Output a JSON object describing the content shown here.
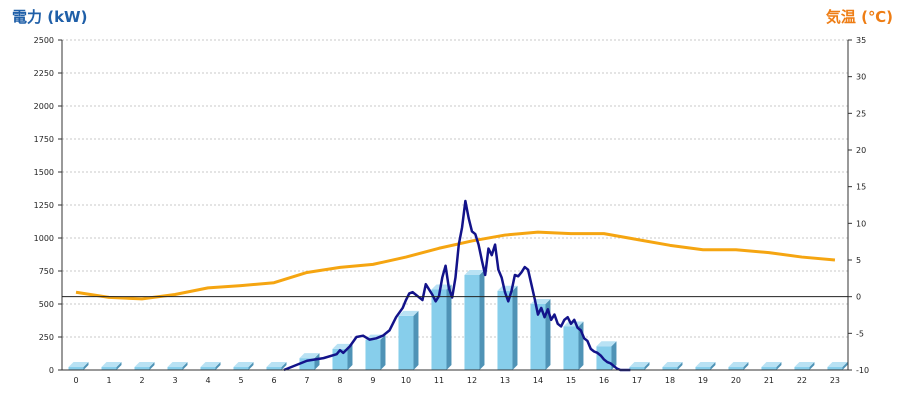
{
  "chart_data": {
    "type": "bar",
    "title": "",
    "ylabel": "電力 (kW)",
    "y2label": "気温 (℃)",
    "categories": [
      "0",
      "1",
      "2",
      "3",
      "4",
      "5",
      "6",
      "7",
      "8",
      "9",
      "10",
      "11",
      "12",
      "13",
      "14",
      "15",
      "16",
      "17",
      "18",
      "19",
      "20",
      "21",
      "22",
      "23"
    ],
    "ylim": [
      0,
      2500
    ],
    "yticks": [
      0,
      250,
      500,
      750,
      1000,
      1250,
      1500,
      1750,
      2000,
      2250,
      2500
    ],
    "y2lim": [
      -10,
      35
    ],
    "y2ticks": [
      -10,
      -5,
      0,
      5,
      10,
      15,
      20,
      25,
      30,
      35
    ],
    "grid": true,
    "reference_line_y2": 0,
    "colors": {
      "bar_front": "#87ceeb",
      "bar_side": "#4f93b6",
      "bar_top": "#b9e2f4",
      "power_line": "#13138a",
      "temp_line": "#f5a511",
      "left_axis_label": "#1f5fa8",
      "right_axis_label": "#ee7d14"
    },
    "series": [
      {
        "kind": "bar",
        "axis": "left",
        "values": [
          0,
          0,
          0,
          0,
          0,
          0,
          0,
          90,
          160,
          230,
          410,
          610,
          720,
          600,
          500,
          330,
          180,
          0,
          0,
          0,
          0,
          0,
          0,
          0
        ]
      },
      {
        "kind": "line",
        "axis": "left",
        "x": [
          6.3,
          7,
          7.5,
          7.9,
          8,
          8.1,
          8.3,
          8.5,
          8.7,
          8.9,
          9.1,
          9.3,
          9.5,
          9.7,
          9.9,
          10,
          10.1,
          10.2,
          10.35,
          10.5,
          10.6,
          10.8,
          10.9,
          11,
          11.1,
          11.2,
          11.3,
          11.4,
          11.5,
          11.6,
          11.7,
          11.8,
          11.9,
          12,
          12.1,
          12.2,
          12.3,
          12.4,
          12.5,
          12.6,
          12.7,
          12.8,
          12.9,
          13,
          13.1,
          13.2,
          13.3,
          13.4,
          13.5,
          13.6,
          13.7,
          13.8,
          13.9,
          14,
          14.1,
          14.2,
          14.3,
          14.4,
          14.5,
          14.6,
          14.7,
          14.8,
          14.9,
          15,
          15.1,
          15.2,
          15.3,
          15.4,
          15.5,
          15.6,
          15.7,
          15.8,
          15.9,
          16,
          16.1,
          16.2,
          16.3,
          16.4,
          16.5,
          16.6,
          16.7,
          16.8
        ],
        "values": [
          0,
          70,
          90,
          120,
          150,
          130,
          180,
          250,
          260,
          230,
          240,
          260,
          300,
          400,
          470,
          530,
          580,
          590,
          560,
          530,
          650,
          570,
          520,
          560,
          700,
          790,
          620,
          550,
          700,
          950,
          1080,
          1280,
          1150,
          1050,
          1030,
          950,
          830,
          720,
          920,
          870,
          950,
          760,
          700,
          590,
          520,
          600,
          720,
          710,
          740,
          780,
          760,
          650,
          540,
          420,
          470,
          400,
          460,
          380,
          420,
          350,
          330,
          380,
          400,
          350,
          380,
          320,
          300,
          240,
          220,
          160,
          140,
          130,
          110,
          80,
          60,
          50,
          30,
          10,
          0,
          0,
          0,
          0
        ],
        "visible_range": [
          6.3,
          16.6
        ]
      },
      {
        "kind": "line",
        "axis": "right",
        "x": [
          0,
          1,
          2,
          3,
          4,
          5,
          6,
          7,
          8,
          9,
          10,
          11,
          12,
          13,
          14,
          15,
          16,
          17,
          18,
          19,
          20,
          21,
          22,
          23
        ],
        "values": [
          0.6,
          -0.1,
          -0.3,
          0.3,
          1.2,
          1.5,
          1.9,
          3.3,
          4.0,
          4.4,
          5.4,
          6.6,
          7.6,
          8.4,
          8.8,
          8.6,
          8.6,
          7.8,
          7.0,
          6.4,
          6.4,
          6.0,
          5.4,
          5.0
        ]
      }
    ]
  }
}
